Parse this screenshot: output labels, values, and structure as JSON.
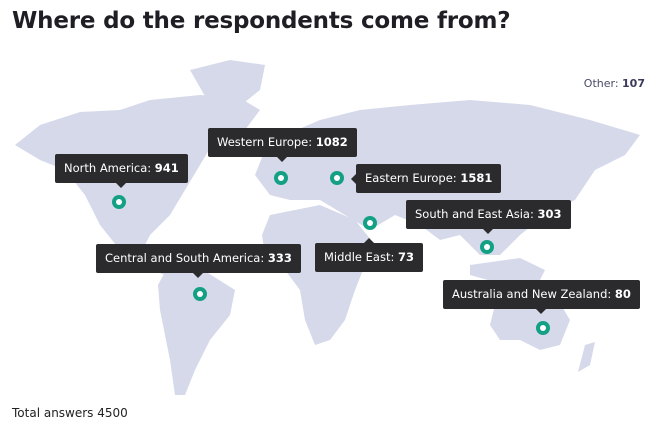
{
  "title": "Where do the respondents come from?",
  "other": {
    "label": "Other:",
    "value": "107"
  },
  "colors": {
    "land": "#d6d9ea",
    "marker": "#14a084",
    "tooltip": "#2b2b2d"
  },
  "regions": [
    {
      "label": "North America:",
      "value": "941"
    },
    {
      "label": "Western Europe:",
      "value": "1082"
    },
    {
      "label": "Eastern Europe:",
      "value": "1581"
    },
    {
      "label": "South and East Asia:",
      "value": "303"
    },
    {
      "label": "Central and South America:",
      "value": "333"
    },
    {
      "label": "Middle East:",
      "value": "73"
    },
    {
      "label": "Australia and New Zealand:",
      "value": "80"
    }
  ],
  "footer": {
    "total_label": "Total answers",
    "total_value": "4500"
  }
}
